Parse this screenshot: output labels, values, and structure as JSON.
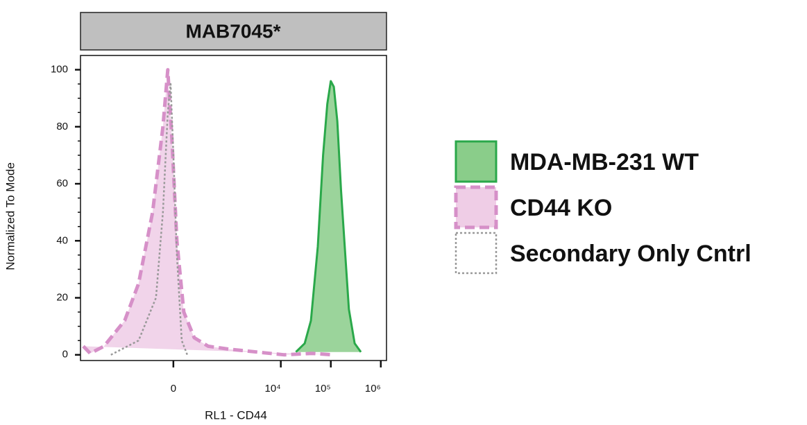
{
  "chart_data": {
    "type": "histogram-overlay",
    "title": "MAB7045*",
    "x_label": "RL1 - CD44",
    "y_label": "Normalized To Mode",
    "xscale": "biexponential",
    "xlim": [
      -4800,
      1300000
    ],
    "ylim": [
      -2,
      105
    ],
    "xticks": [
      0,
      {
        "value": 10000,
        "label": "10⁴"
      },
      {
        "value": 100000,
        "label": "10⁵"
      },
      {
        "value": 1000000,
        "label": "10⁶"
      }
    ],
    "yticks": [
      0,
      20,
      40,
      60,
      80,
      100
    ],
    "legend": "right",
    "series": [
      {
        "name": "MDA-MB-231 WT",
        "color": "#2aa84a",
        "fill": "#8acd8a",
        "style": "solid",
        "x": [
          20000,
          30000,
          40000,
          55000,
          70000,
          85000,
          100000,
          115000,
          135000,
          160000,
          190000,
          230000,
          300000,
          400000
        ],
        "values": [
          1,
          4,
          12,
          38,
          70,
          88,
          96,
          94,
          82,
          58,
          38,
          16,
          4,
          1
        ]
      },
      {
        "name": "CD44 KO",
        "color": "#d690c8",
        "fill": "#efcde6",
        "style": "dashed",
        "x": [
          -4500,
          -3270,
          -1730,
          -660,
          -338,
          -158,
          -71,
          -37,
          -9,
          23,
          71,
          158,
          338,
          913,
          3270,
          11800,
          42300,
          110000
        ],
        "values": [
          3,
          0.5,
          3,
          12,
          25,
          50,
          80,
          100,
          75,
          40,
          15,
          6,
          3,
          2,
          1,
          0,
          0.5,
          0
        ]
      },
      {
        "name": "Secondary Only Cntrl",
        "color": "#999999",
        "fill": "none",
        "style": "dotted",
        "x": [
          -1260,
          -338,
          -126,
          -71,
          -37,
          -18,
          0,
          23,
          56,
          97
        ],
        "values": [
          0,
          5,
          20,
          50,
          85,
          95,
          70,
          35,
          5,
          0
        ]
      }
    ]
  }
}
